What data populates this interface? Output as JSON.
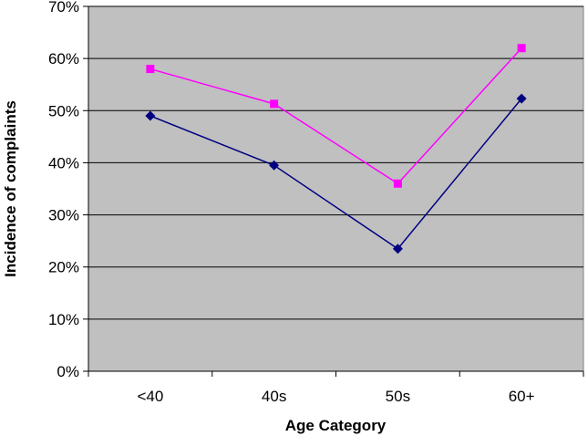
{
  "chart_data": {
    "type": "line",
    "title": "",
    "xlabel": "Age Category",
    "ylabel": "Incidence of complaints",
    "categories": [
      "<40",
      "40s",
      "50s",
      "60+"
    ],
    "ylim": [
      0,
      70
    ],
    "yticks": [
      0,
      10,
      20,
      30,
      40,
      50,
      60,
      70
    ],
    "ytick_suffix": "%",
    "grid": true,
    "legend": "none",
    "plot_background": "#c0c0c0",
    "series": [
      {
        "color": "#ff00ff",
        "marker": "square",
        "values": [
          58,
          51.3,
          36,
          62
        ]
      },
      {
        "color": "#000080",
        "marker": "diamond",
        "values": [
          49,
          39.5,
          23.5,
          52.3
        ]
      }
    ]
  }
}
